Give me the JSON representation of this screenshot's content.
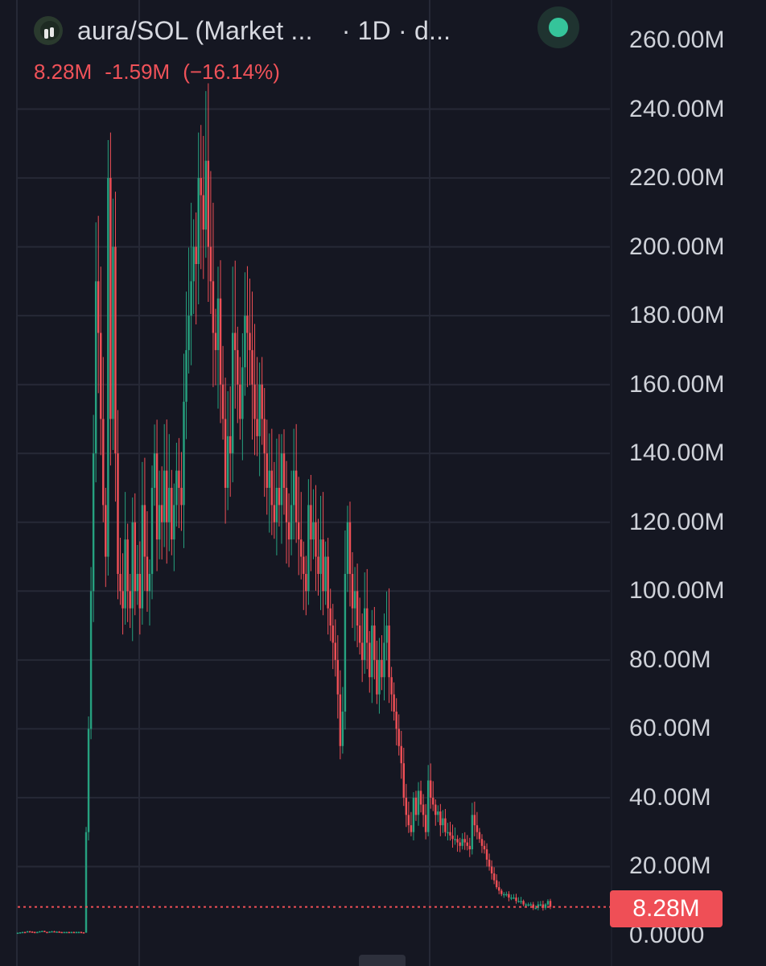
{
  "header": {
    "title": "aura/SOL (Market ...",
    "interval": "· 1D · d...",
    "last": "8.28M",
    "change": "-1.59M",
    "change_pct": "(−16.14%)"
  },
  "colors": {
    "background": "#151722",
    "up": "#26a17f",
    "down": "#ef4f56",
    "grid": "#262936",
    "status": "#35c49a"
  },
  "icons": {
    "status": "live-dot-icon",
    "avatar": "token-avatar-icon"
  },
  "price_badge": "8.28M",
  "chart_data": {
    "type": "candlestick",
    "title": "aura/SOL (Market ...",
    "xlabel": "",
    "ylabel": "",
    "y_ticks": [
      "260.00M",
      "240.00M",
      "220.00M",
      "200.00M",
      "180.00M",
      "160.00M",
      "140.00M",
      "120.00M",
      "100.00M",
      "80.00M",
      "60.00M",
      "40.00M",
      "20.00M",
      "0.0000"
    ],
    "ylim": [
      0,
      265
    ],
    "grid": true,
    "last_price": 8.28,
    "closes": [
      0.8,
      0.9,
      1.0,
      0.9,
      1.2,
      1.1,
      1.0,
      0.9,
      1.0,
      1.2,
      1.3,
      1.0,
      0.9,
      1.1,
      1.2,
      1.0,
      1.1,
      1.0,
      0.9,
      1.0,
      1.0,
      0.9,
      1.0,
      0.9,
      1.0,
      1.0,
      0.9,
      0.8,
      30,
      60,
      100,
      140,
      190,
      175,
      150,
      125,
      110,
      220,
      150,
      200,
      140,
      105,
      100,
      95,
      115,
      100,
      95,
      120,
      100,
      105,
      95,
      125,
      110,
      100,
      105,
      130,
      140,
      115,
      125,
      120,
      135,
      120,
      130,
      115,
      125,
      135,
      130,
      125,
      155,
      170,
      180,
      190,
      200,
      195,
      220,
      215,
      205,
      225,
      200,
      190,
      175,
      170,
      185,
      160,
      150,
      130,
      145,
      140,
      175,
      170,
      160,
      150,
      165,
      180,
      175,
      170,
      160,
      150,
      145,
      160,
      150,
      140,
      130,
      135,
      125,
      120,
      130,
      125,
      140,
      130,
      120,
      115,
      125,
      135,
      120,
      115,
      110,
      105,
      100,
      125,
      115,
      120,
      110,
      105,
      115,
      100,
      110,
      95,
      90,
      85,
      80,
      70,
      55,
      65,
      105,
      120,
      105,
      95,
      100,
      90,
      85,
      80,
      95,
      85,
      75,
      90,
      80,
      70,
      80,
      75,
      85,
      90,
      75,
      70,
      65,
      60,
      55,
      50,
      40,
      35,
      32,
      30,
      40,
      35,
      42,
      38,
      35,
      30,
      45,
      40,
      38,
      35,
      36,
      32,
      34,
      30,
      30,
      29,
      28,
      28,
      27,
      26,
      28,
      27,
      26,
      25,
      35,
      32,
      30,
      28,
      26,
      25,
      22,
      20,
      18,
      16,
      14,
      13,
      12,
      12,
      12,
      11,
      11,
      11,
      10,
      10,
      10,
      9,
      9,
      9,
      9,
      8,
      8,
      9,
      9,
      8,
      9,
      10,
      8.28
    ]
  }
}
